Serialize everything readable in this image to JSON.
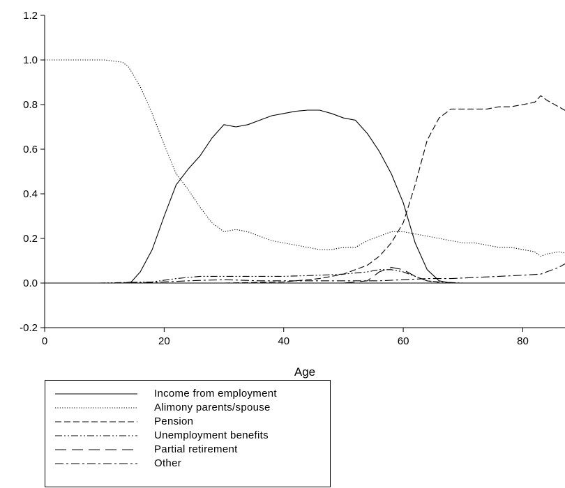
{
  "chart_data": {
    "type": "line",
    "title": "",
    "xlabel": "Age",
    "ylabel": "",
    "xlim": [
      0,
      88
    ],
    "ylim": [
      -0.2,
      1.2
    ],
    "xticks": [
      "0",
      "20",
      "40",
      "60",
      "80"
    ],
    "yticks": [
      "-0.2",
      "0.0",
      "0.2",
      "0.4",
      "0.6",
      "0.8",
      "1.0",
      "1.2"
    ],
    "grid": false,
    "legend_position": "bottom-left",
    "series": [
      {
        "name": "Income from employment",
        "dash": "solid",
        "points": [
          [
            9,
            0
          ],
          [
            13,
            0
          ],
          [
            14.5,
            0.005
          ],
          [
            16,
            0.05
          ],
          [
            18,
            0.15
          ],
          [
            20,
            0.3
          ],
          [
            22,
            0.44
          ],
          [
            24,
            0.51
          ],
          [
            26,
            0.57
          ],
          [
            28,
            0.65
          ],
          [
            30,
            0.71
          ],
          [
            32,
            0.7
          ],
          [
            34,
            0.71
          ],
          [
            36,
            0.73
          ],
          [
            38,
            0.75
          ],
          [
            40,
            0.76
          ],
          [
            42,
            0.77
          ],
          [
            44,
            0.775
          ],
          [
            46,
            0.775
          ],
          [
            48,
            0.76
          ],
          [
            50,
            0.74
          ],
          [
            52,
            0.73
          ],
          [
            54,
            0.67
          ],
          [
            56,
            0.59
          ],
          [
            58,
            0.49
          ],
          [
            60,
            0.36
          ],
          [
            62,
            0.18
          ],
          [
            64,
            0.06
          ],
          [
            66,
            0.01
          ],
          [
            68,
            0
          ],
          [
            76,
            0
          ]
        ]
      },
      {
        "name": "Alimony parents/spouse",
        "dash": "dotted",
        "points": [
          [
            0,
            1.0
          ],
          [
            10,
            1.0
          ],
          [
            13,
            0.99
          ],
          [
            14,
            0.97
          ],
          [
            16,
            0.88
          ],
          [
            18,
            0.76
          ],
          [
            20,
            0.62
          ],
          [
            22,
            0.49
          ],
          [
            24,
            0.42
          ],
          [
            26,
            0.34
          ],
          [
            28,
            0.27
          ],
          [
            30,
            0.23
          ],
          [
            32,
            0.24
          ],
          [
            34,
            0.23
          ],
          [
            36,
            0.21
          ],
          [
            38,
            0.19
          ],
          [
            40,
            0.18
          ],
          [
            42,
            0.17
          ],
          [
            44,
            0.16
          ],
          [
            46,
            0.15
          ],
          [
            48,
            0.15
          ],
          [
            50,
            0.16
          ],
          [
            52,
            0.16
          ],
          [
            54,
            0.19
          ],
          [
            56,
            0.21
          ],
          [
            58,
            0.23
          ],
          [
            60,
            0.23
          ],
          [
            62,
            0.22
          ],
          [
            64,
            0.21
          ],
          [
            66,
            0.2
          ],
          [
            68,
            0.19
          ],
          [
            70,
            0.18
          ],
          [
            72,
            0.18
          ],
          [
            74,
            0.17
          ],
          [
            76,
            0.16
          ],
          [
            78,
            0.16
          ],
          [
            80,
            0.15
          ],
          [
            82,
            0.14
          ],
          [
            83,
            0.12
          ],
          [
            84,
            0.13
          ],
          [
            86,
            0.14
          ],
          [
            88,
            0.13
          ]
        ]
      },
      {
        "name": "Pension",
        "dash": "dashed",
        "points": [
          [
            30,
            0
          ],
          [
            40,
            0.005
          ],
          [
            46,
            0.02
          ],
          [
            50,
            0.04
          ],
          [
            54,
            0.08
          ],
          [
            56,
            0.12
          ],
          [
            58,
            0.18
          ],
          [
            60,
            0.27
          ],
          [
            62,
            0.44
          ],
          [
            64,
            0.64
          ],
          [
            66,
            0.74
          ],
          [
            68,
            0.78
          ],
          [
            70,
            0.78
          ],
          [
            72,
            0.78
          ],
          [
            74,
            0.78
          ],
          [
            76,
            0.79
          ],
          [
            78,
            0.79
          ],
          [
            80,
            0.8
          ],
          [
            82,
            0.81
          ],
          [
            83,
            0.84
          ],
          [
            84,
            0.82
          ],
          [
            86,
            0.79
          ],
          [
            88,
            0.76
          ]
        ]
      },
      {
        "name": "Unemployment benefits",
        "dash": "dashdotdot",
        "points": [
          [
            9,
            0
          ],
          [
            18,
            0.005
          ],
          [
            22,
            0.02
          ],
          [
            26,
            0.03
          ],
          [
            30,
            0.03
          ],
          [
            34,
            0.03
          ],
          [
            40,
            0.03
          ],
          [
            46,
            0.035
          ],
          [
            50,
            0.04
          ],
          [
            54,
            0.05
          ],
          [
            56,
            0.06
          ],
          [
            58,
            0.06
          ],
          [
            60,
            0.05
          ],
          [
            62,
            0.03
          ],
          [
            64,
            0.01
          ],
          [
            66,
            0.005
          ],
          [
            70,
            0
          ]
        ]
      },
      {
        "name": "Partial retirement",
        "dash": "longdash",
        "points": [
          [
            50,
            0
          ],
          [
            54,
            0.01
          ],
          [
            56,
            0.05
          ],
          [
            58,
            0.07
          ],
          [
            60,
            0.06
          ],
          [
            62,
            0.03
          ],
          [
            64,
            0.01
          ],
          [
            66,
            0
          ]
        ]
      },
      {
        "name": "Other",
        "dash": "dashdot",
        "points": [
          [
            14,
            0
          ],
          [
            20,
            0.005
          ],
          [
            24,
            0.01
          ],
          [
            30,
            0.015
          ],
          [
            36,
            0.01
          ],
          [
            40,
            0.01
          ],
          [
            46,
            0.01
          ],
          [
            52,
            0.01
          ],
          [
            56,
            0.01
          ],
          [
            60,
            0.015
          ],
          [
            64,
            0.02
          ],
          [
            68,
            0.02
          ],
          [
            72,
            0.025
          ],
          [
            76,
            0.03
          ],
          [
            80,
            0.035
          ],
          [
            83,
            0.04
          ],
          [
            84,
            0.05
          ],
          [
            86,
            0.07
          ],
          [
            88,
            0.1
          ]
        ]
      }
    ]
  }
}
